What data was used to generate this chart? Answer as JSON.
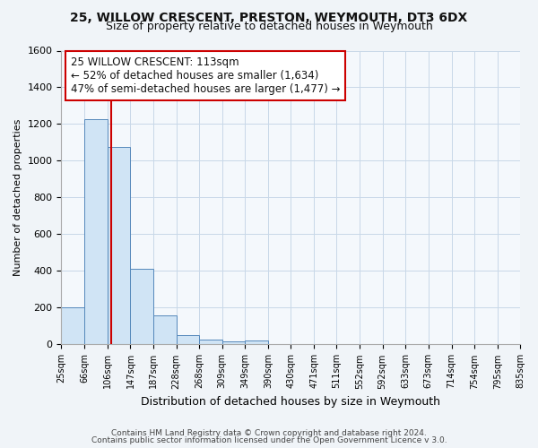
{
  "title1": "25, WILLOW CRESCENT, PRESTON, WEYMOUTH, DT3 6DX",
  "title2": "Size of property relative to detached houses in Weymouth",
  "xlabel": "Distribution of detached houses by size in Weymouth",
  "ylabel": "Number of detached properties",
  "bin_edges": [
    25,
    66,
    106,
    147,
    187,
    228,
    268,
    309,
    349,
    390,
    430,
    471,
    511,
    552,
    592,
    633,
    673,
    714,
    754,
    795,
    835
  ],
  "bin_labels": [
    "25sqm",
    "66sqm",
    "106sqm",
    "147sqm",
    "187sqm",
    "228sqm",
    "268sqm",
    "309sqm",
    "349sqm",
    "390sqm",
    "430sqm",
    "471sqm",
    "511sqm",
    "552sqm",
    "592sqm",
    "633sqm",
    "673sqm",
    "714sqm",
    "754sqm",
    "795sqm",
    "835sqm"
  ],
  "bar_heights": [
    200,
    1225,
    1075,
    410,
    160,
    50,
    25,
    15,
    20,
    0,
    0,
    0,
    0,
    0,
    0,
    0,
    0,
    0,
    0,
    0
  ],
  "bar_color": "#d0e4f5",
  "bar_edge_color": "#5588bb",
  "ylim": [
    0,
    1600
  ],
  "yticks": [
    0,
    200,
    400,
    600,
    800,
    1000,
    1200,
    1400,
    1600
  ],
  "red_line_x": 113,
  "annotation_title": "25 WILLOW CRESCENT: 113sqm",
  "annotation_line1": "← 52% of detached houses are smaller (1,634)",
  "annotation_line2": "47% of semi-detached houses are larger (1,477) →",
  "footer1": "Contains HM Land Registry data © Crown copyright and database right 2024.",
  "footer2": "Contains public sector information licensed under the Open Government Licence v 3.0.",
  "background_color": "#f0f4f8",
  "plot_bg_color": "#f4f8fc",
  "grid_color": "#c8d8e8",
  "annotation_box_edge": "#cc0000",
  "red_line_color": "#cc0000",
  "title1_fontsize": 10,
  "title2_fontsize": 9,
  "ylabel_fontsize": 8,
  "xlabel_fontsize": 9,
  "tick_fontsize": 8,
  "xtick_fontsize": 7
}
